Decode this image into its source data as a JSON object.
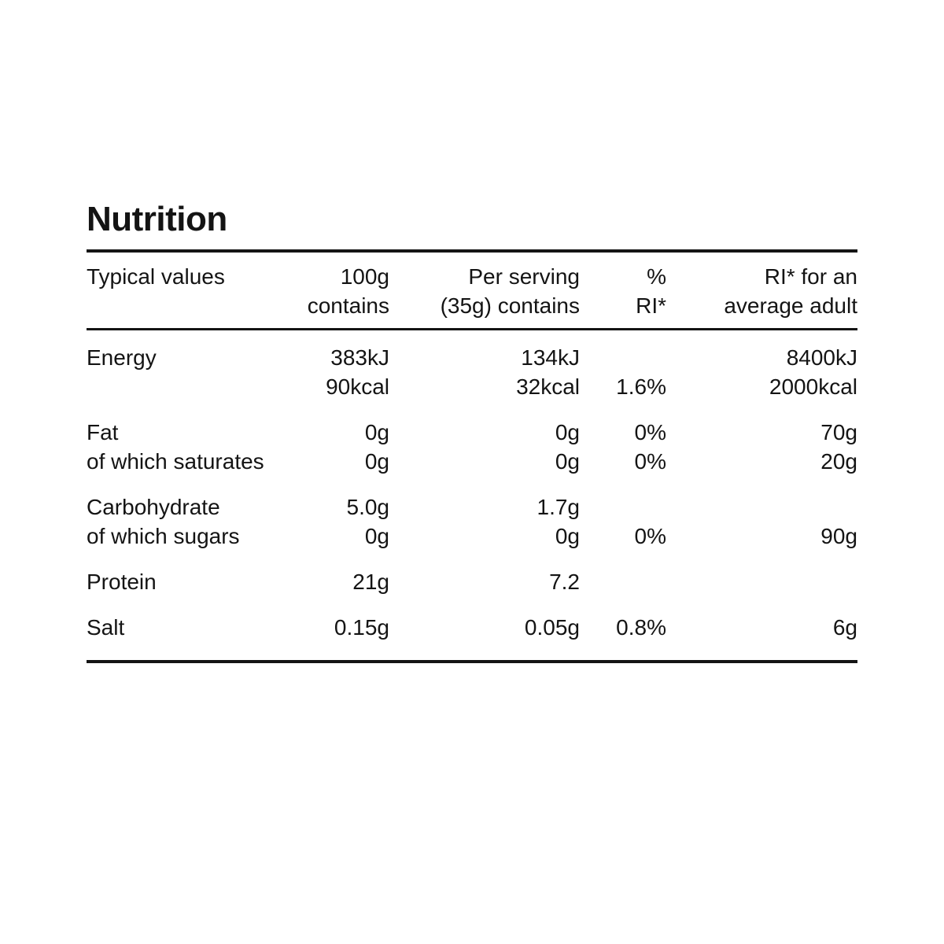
{
  "title": "Nutrition",
  "colors": {
    "text": "#141414",
    "rule": "#141414",
    "background": "#ffffff"
  },
  "table": {
    "headers": [
      {
        "id": "typical-values",
        "lines": [
          "Typical values",
          ""
        ]
      },
      {
        "id": "per-100g",
        "lines": [
          "100g",
          "contains"
        ]
      },
      {
        "id": "per-serving",
        "lines": [
          "Per serving",
          "(35g) contains"
        ]
      },
      {
        "id": "percent-ri",
        "lines": [
          "%",
          "RI*"
        ]
      },
      {
        "id": "ri-average-adult",
        "lines": [
          "RI* for an",
          "average adult"
        ]
      }
    ],
    "rows": [
      {
        "id": "energy",
        "cols": [
          [
            "Energy",
            ""
          ],
          [
            "383kJ",
            "90kcal"
          ],
          [
            "134kJ",
            "32kcal"
          ],
          [
            "",
            "1.6%"
          ],
          [
            "8400kJ",
            "2000kcal"
          ]
        ]
      },
      {
        "id": "fat",
        "cols": [
          [
            "Fat",
            "of which saturates"
          ],
          [
            "0g",
            "0g"
          ],
          [
            "0g",
            "0g"
          ],
          [
            "0%",
            "0%"
          ],
          [
            "70g",
            "20g"
          ]
        ]
      },
      {
        "id": "carbohydrate",
        "cols": [
          [
            "Carbohydrate",
            "of which sugars"
          ],
          [
            "5.0g",
            "0g"
          ],
          [
            "1.7g",
            "0g"
          ],
          [
            "",
            "0%"
          ],
          [
            "",
            "90g"
          ]
        ]
      },
      {
        "id": "protein",
        "cols": [
          [
            "Protein"
          ],
          [
            "21g"
          ],
          [
            "7.2"
          ],
          [
            ""
          ],
          [
            ""
          ]
        ]
      },
      {
        "id": "salt",
        "cols": [
          [
            "Salt"
          ],
          [
            "0.15g"
          ],
          [
            "0.05g"
          ],
          [
            "0.8%"
          ],
          [
            "6g"
          ]
        ]
      }
    ]
  }
}
